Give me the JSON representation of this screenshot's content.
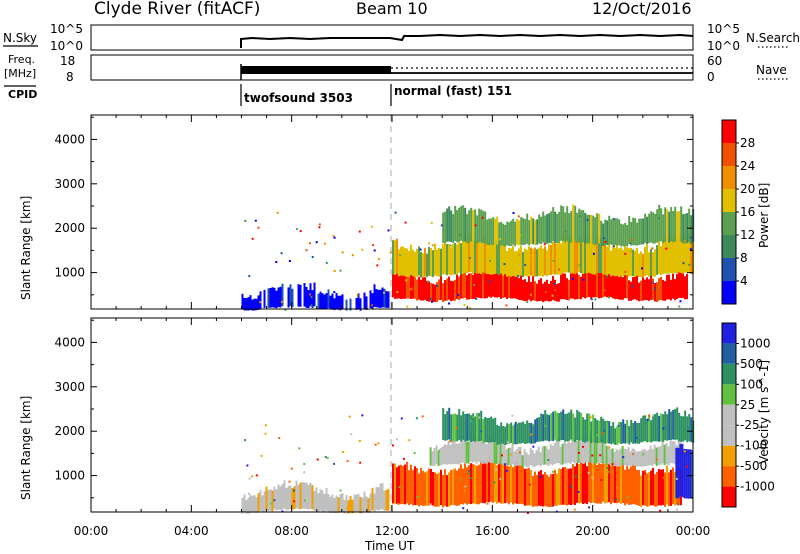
{
  "header": {
    "title": "Clyde River (fitACF)",
    "beam": "Beam 10",
    "date": "12/Oct/2016"
  },
  "params": {
    "nsky_label": "N.Sky",
    "nsky_top": "10^5",
    "nsky_bottom": "10^0",
    "nsearch_label": "N.Search",
    "nsearch_top": "10^5",
    "nsearch_bottom": "10^0",
    "freq_label_1": "Freq.",
    "freq_label_2": "[MHz]",
    "freq_top": "18",
    "freq_bottom": "8",
    "nave_label": "Nave",
    "nave_top": "60",
    "nave_bottom": "0",
    "cpid_label": "CPID",
    "cpid_segments": [
      {
        "label": "twofsound 3503",
        "start_hour": 6.0,
        "end_hour": 12.0
      },
      {
        "label": "normal (fast) 151",
        "start_hour": 12.0,
        "end_hour": 24.0
      }
    ]
  },
  "colors": {
    "power": [
      "#0000ff",
      "#2050b0",
      "#3c8a5a",
      "#5aa050",
      "#e0c000",
      "#f09000",
      "#f05000",
      "#ff0000"
    ],
    "velocity": [
      "#ff0000",
      "#ff6000",
      "#f0a000",
      "#c0c0c0",
      "#c0c0c0",
      "#60c040",
      "#2c9060",
      "#2060a0",
      "#2020e0"
    ]
  },
  "chart_data": [
    {
      "type": "heatmap",
      "name": "power",
      "xlabel": "",
      "ylabel": "Slant Range [km]",
      "xlim": [
        0,
        24
      ],
      "ylim": [
        180,
        4550
      ],
      "x_ticks": [],
      "y_ticks": [
        1000,
        2000,
        3000,
        4000
      ],
      "colorbar_label": "Power [dB]",
      "colorbar_ticks": [
        "4",
        "8",
        "12",
        "16",
        "20",
        "24",
        "28"
      ],
      "bands": [
        {
          "x_start": 6.0,
          "x_end": 11.9,
          "y_low": 200,
          "y_high": 650,
          "value": "4-12 dB",
          "color_index": 0
        },
        {
          "x_start": 12.0,
          "x_end": 23.8,
          "y_low": 400,
          "y_high": 1000,
          "value": ">28 dB",
          "color_index": 7
        },
        {
          "x_start": 12.0,
          "x_end": 24.0,
          "y_low": 950,
          "y_high": 1700,
          "value": "12-24 dB",
          "color_index": 4
        },
        {
          "x_start": 14.0,
          "x_end": 24.0,
          "y_low": 1650,
          "y_high": 2350,
          "value": "8-20 dB",
          "color_index": 3
        }
      ]
    },
    {
      "type": "heatmap",
      "name": "velocity",
      "xlabel": "Time UT",
      "ylabel": "Slant Range [km]",
      "xlim": [
        0,
        24
      ],
      "ylim": [
        180,
        4550
      ],
      "x_ticks": [
        "00:00",
        "04:00",
        "08:00",
        "12:00",
        "16:00",
        "20:00",
        "00:00"
      ],
      "y_ticks": [
        1000,
        2000,
        3000,
        4000
      ],
      "colorbar_label": "Velocity [m s^-1]",
      "colorbar_ticks": [
        "-1000",
        "-500",
        "-100",
        "-25",
        "25",
        "100",
        "500",
        "1000"
      ],
      "bands": [
        {
          "x_start": 6.0,
          "x_end": 11.9,
          "y_low": 200,
          "y_high": 700,
          "value": "-100 to 100 m/s",
          "color_index": 3
        },
        {
          "x_start": 12.0,
          "x_end": 23.5,
          "y_low": 350,
          "y_high": 1250,
          "value": "-500 to -100 m/s",
          "color_index": 1
        },
        {
          "x_start": 13.5,
          "x_end": 23.5,
          "y_low": 1250,
          "y_high": 1750,
          "value": "-25 to 25 m/s",
          "color_index": 4
        },
        {
          "x_start": 14.0,
          "x_end": 24.0,
          "y_low": 1750,
          "y_high": 2350,
          "value": "-100 to 500 m/s",
          "color_index": 6
        },
        {
          "x_start": 23.3,
          "x_end": 24.0,
          "y_low": 500,
          "y_high": 1700,
          "value": "500-1000 m/s",
          "color_index": 8
        }
      ]
    }
  ]
}
